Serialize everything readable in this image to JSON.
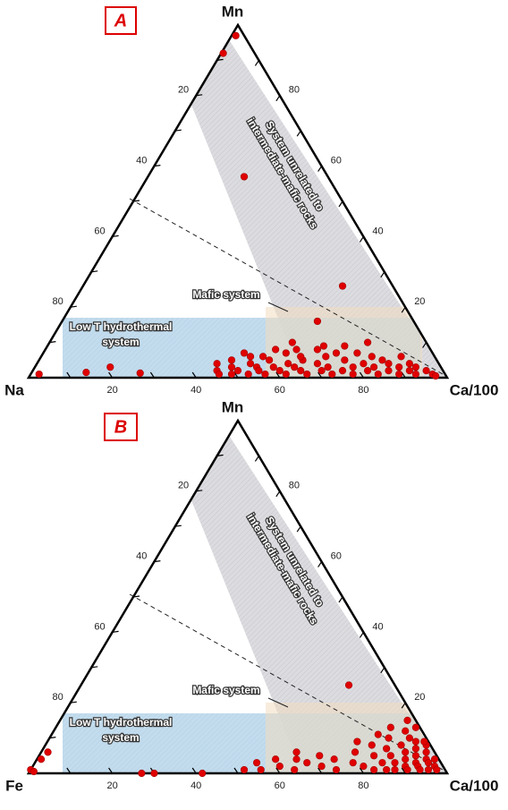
{
  "chart_data": [
    {
      "type": "ternary",
      "panel_label": "A",
      "vertices": {
        "left": "Na",
        "right": "Ca/100",
        "top": "Mn"
      },
      "region_labels": {
        "system": [
          "System unrelated to",
          "intermediate-mafic rocks"
        ],
        "mafic": "Mafic system",
        "hydrothermal": [
          "Low T hydrothermal",
          "system"
        ]
      },
      "left_ticks": [
        20,
        40,
        60,
        80
      ],
      "right_ticks": [
        80,
        60,
        40,
        20
      ],
      "bottom_ticks": [
        20,
        40,
        60,
        80
      ],
      "minor_ticks": [
        10,
        20,
        30,
        40,
        50,
        60,
        70,
        80,
        90
      ],
      "color": "#e00000",
      "points": {
        "x": [
          0.5,
          1,
          23,
          62,
          61,
          2,
          13,
          18,
          26,
          43,
          44,
          45,
          46,
          47,
          48,
          49,
          50,
          51,
          52,
          53,
          54,
          55,
          56,
          57,
          58,
          59,
          60,
          61,
          62,
          63,
          64,
          65,
          66,
          67,
          68,
          69,
          70,
          71,
          72,
          73,
          74,
          75,
          76,
          77,
          78,
          79,
          80,
          81,
          82,
          83,
          84,
          85,
          86,
          87,
          88,
          89,
          90,
          91,
          92,
          94,
          96,
          97,
          48,
          55,
          62,
          70,
          76,
          66,
          58,
          53,
          60
        ],
        "y": [
          92,
          97,
          57,
          26,
          16,
          1,
          1.5,
          3,
          1.3,
          4,
          2,
          1,
          5,
          3,
          1,
          2,
          6,
          4,
          1,
          3,
          2,
          5,
          1,
          3,
          7,
          2,
          4,
          1,
          3,
          5,
          2,
          8,
          1,
          4,
          6,
          2,
          3,
          9,
          1,
          5,
          2,
          7,
          3,
          1,
          4,
          6,
          2,
          3,
          5,
          1,
          4,
          2,
          6,
          3,
          1,
          4,
          2,
          3,
          1,
          2,
          1,
          0.5,
          7,
          8,
          6,
          7,
          10,
          9,
          10,
          6,
          8
        ]
      }
    },
    {
      "type": "ternary",
      "panel_label": "B",
      "vertices": {
        "left": "Fe",
        "right": "Ca/100",
        "top": "Mn"
      },
      "region_labels": {
        "system": [
          "System unrelated to",
          "intermediate-mafic rocks"
        ],
        "mafic": "Mafic system",
        "hydrothermal": [
          "Low T hydrothermal",
          "system"
        ]
      },
      "left_ticks": [
        20,
        40,
        60,
        80
      ],
      "right_ticks": [
        80,
        60,
        40,
        20
      ],
      "bottom_ticks": [
        20,
        40,
        60,
        80
      ],
      "minor_ticks": [
        10,
        20,
        30,
        40,
        50,
        60,
        70,
        80,
        90
      ],
      "color": "#e00000",
      "points": {
        "x": [
          1.6,
          1,
          0,
          1,
          27,
          30,
          41.5,
          51,
          64,
          53,
          55,
          57,
          59,
          61,
          63,
          65,
          67,
          69,
          71,
          73,
          75,
          76,
          78,
          79,
          80,
          81,
          82,
          82,
          83,
          84,
          84,
          85,
          85,
          86,
          86,
          87,
          87,
          88,
          88,
          89,
          89,
          90,
          90,
          91,
          91,
          92,
          92,
          93,
          93,
          94,
          95,
          95,
          96,
          97,
          80,
          83,
          86,
          78,
          90,
          62,
          74
        ],
        "y": [
          6,
          4,
          1,
          0.5,
          0,
          0,
          0,
          1,
          25,
          3,
          1,
          4,
          2,
          6,
          1,
          3,
          5,
          2,
          4,
          1,
          6,
          3,
          8,
          2,
          5,
          10,
          1,
          7,
          3,
          12,
          5,
          1,
          8,
          3,
          10,
          6,
          1,
          4,
          9,
          2,
          7,
          5,
          1,
          3,
          8,
          2,
          6,
          4,
          1,
          3,
          1,
          4,
          2,
          1,
          13,
          15,
          13,
          11,
          9,
          4,
          9
        ]
      }
    }
  ]
}
